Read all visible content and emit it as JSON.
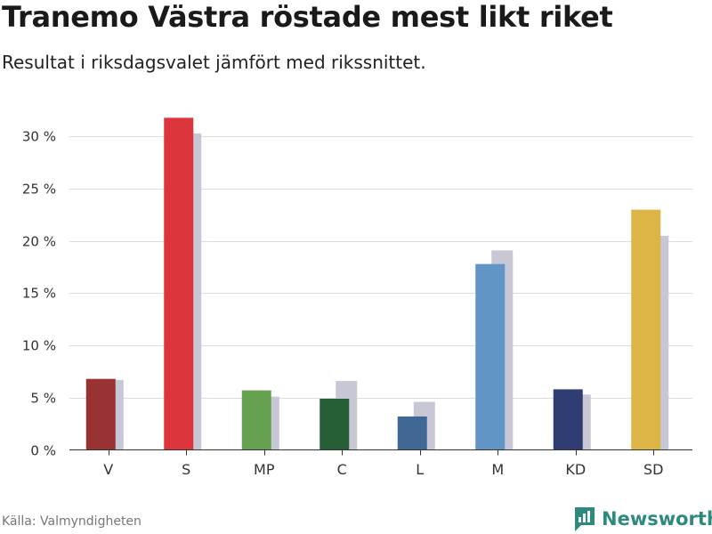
{
  "header": {
    "title": "Tranemo Västra röstade mest likt riket",
    "subtitle": "Resultat i riksdagsvalet jämfört med rikssnittet."
  },
  "footer": {
    "source": "Källa: Valmyndigheten",
    "brand": "Newsworthy",
    "brand_color": "#2f8a7e"
  },
  "chart_data": {
    "type": "bar",
    "title": "Tranemo Västra röstade mest likt riket",
    "subtitle": "Resultat i riksdagsvalet jämfört med rikssnittet.",
    "categories": [
      "V",
      "S",
      "MP",
      "C",
      "L",
      "M",
      "KD",
      "SD"
    ],
    "series": [
      {
        "values": [
          6.8,
          31.8,
          5.7,
          4.9,
          3.2,
          17.8,
          5.8,
          23.0
        ],
        "colors": [
          "#993333",
          "#dc363c",
          "#65a150",
          "#265e36",
          "#416795",
          "#6095c6",
          "#303d72",
          "#ddb546"
        ]
      },
      {
        "values": [
          6.7,
          30.3,
          5.1,
          6.6,
          4.6,
          19.1,
          5.3,
          20.5
        ],
        "color": "#c7c7d5"
      }
    ],
    "xlabel": "",
    "ylabel": "",
    "ylim": [
      0,
      32
    ],
    "yticks": [
      0,
      5,
      10,
      15,
      20,
      25,
      30
    ],
    "ytick_labels": [
      "0 %",
      "5 %",
      "10 %",
      "15 %",
      "20 %",
      "25 %",
      "30 %"
    ],
    "grid": true
  }
}
